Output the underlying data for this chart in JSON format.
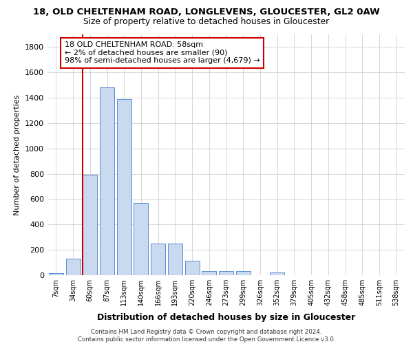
{
  "title_line1": "18, OLD CHELTENHAM ROAD, LONGLEVENS, GLOUCESTER, GL2 0AW",
  "title_line2": "Size of property relative to detached houses in Gloucester",
  "xlabel": "Distribution of detached houses by size in Gloucester",
  "ylabel": "Number of detached properties",
  "footer_line1": "Contains HM Land Registry data © Crown copyright and database right 2024.",
  "footer_line2": "Contains public sector information licensed under the Open Government Licence v3.0.",
  "bar_labels": [
    "7sqm",
    "34sqm",
    "60sqm",
    "87sqm",
    "113sqm",
    "140sqm",
    "166sqm",
    "193sqm",
    "220sqm",
    "246sqm",
    "273sqm",
    "299sqm",
    "326sqm",
    "352sqm",
    "379sqm",
    "405sqm",
    "432sqm",
    "458sqm",
    "485sqm",
    "511sqm",
    "538sqm"
  ],
  "bar_values": [
    15,
    130,
    795,
    1480,
    1390,
    570,
    250,
    250,
    115,
    35,
    30,
    30,
    0,
    20,
    0,
    0,
    0,
    0,
    0,
    0,
    0
  ],
  "bar_color": "#c9d9f0",
  "bar_edgecolor": "#5b8dd4",
  "vline_color": "#cc0000",
  "vline_x": 2.0,
  "annotation_text": "18 OLD CHELTENHAM ROAD: 58sqm\n← 2% of detached houses are smaller (90)\n98% of semi-detached houses are larger (4,679) →",
  "annotation_box_facecolor": "#ffffff",
  "annotation_box_edgecolor": "#cc0000",
  "ylim": [
    0,
    1900
  ],
  "yticks": [
    0,
    200,
    400,
    600,
    800,
    1000,
    1200,
    1400,
    1600,
    1800
  ],
  "background_color": "#ffffff",
  "grid_color": "#d0d0d0"
}
